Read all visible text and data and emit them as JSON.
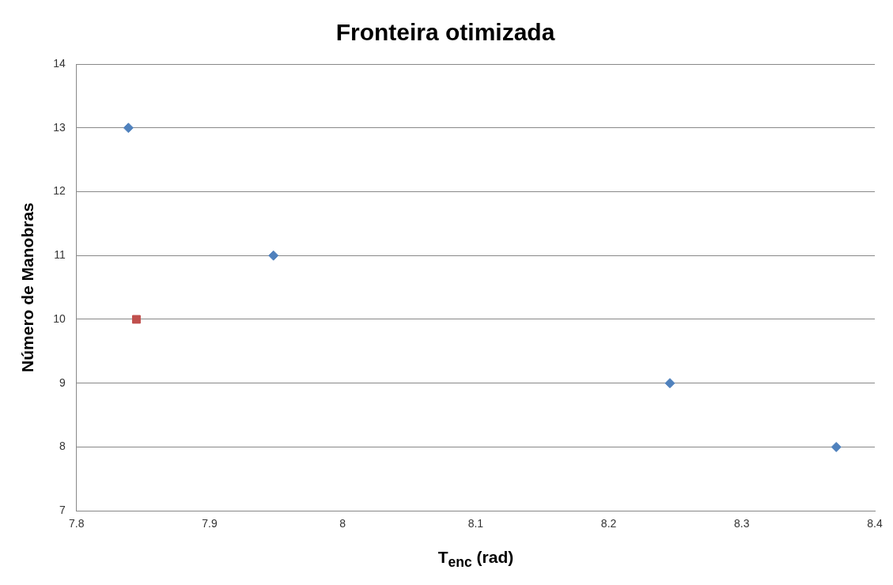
{
  "chart_data": {
    "type": "scatter",
    "title": "Fronteira otimizada",
    "xlabel": "T$_{enc}$ (rad)",
    "ylabel": "Número de Manobras",
    "xlim": [
      7.8,
      8.4
    ],
    "xticks": [
      7.8,
      7.9,
      8,
      8.1,
      8.2,
      8.3,
      8.4
    ],
    "ylim": [
      7,
      14
    ],
    "yticks": [
      7,
      8,
      9,
      10,
      11,
      12,
      13,
      14
    ],
    "grid": "y",
    "legend": false,
    "series": [
      {
        "color": "#4f81bd",
        "marker": "diamond",
        "x": [
          7.839,
          7.948,
          8.246,
          8.371
        ],
        "values": [
          13,
          11,
          9,
          8
        ]
      },
      {
        "color": "#c0504d",
        "marker": "square",
        "x": [
          7.845
        ],
        "values": [
          10
        ]
      }
    ]
  }
}
